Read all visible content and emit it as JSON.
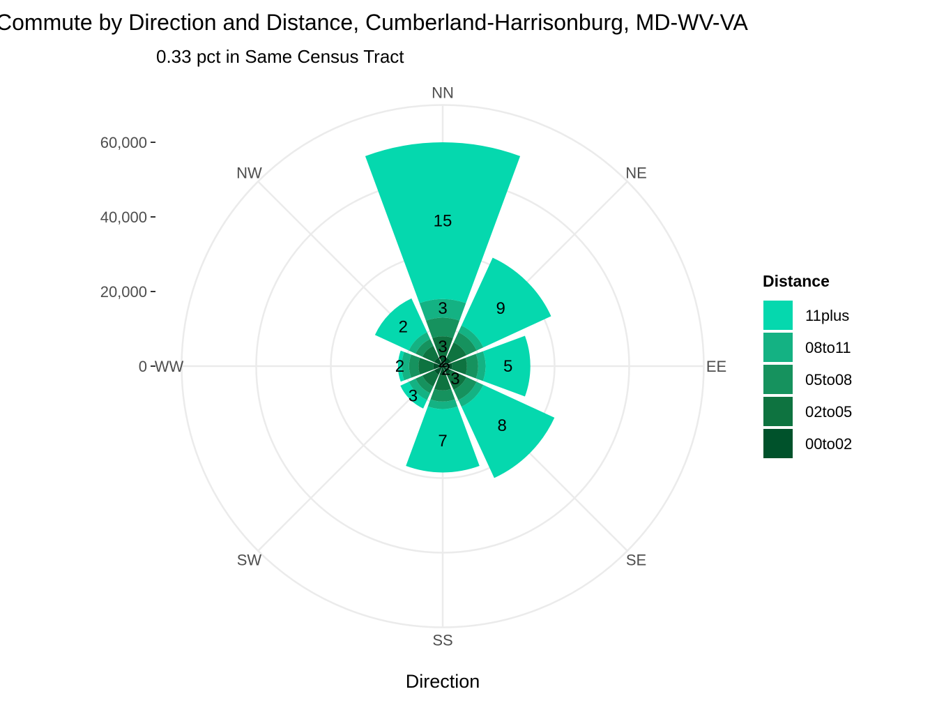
{
  "chart_data": {
    "type": "bar",
    "coord": "polar",
    "title": "Commute by Direction and Distance, Cumberland-Harrisonburg, MD-WV-VA",
    "subtitle": "0.33 pct in Same Census Tract",
    "xlabel": "Direction",
    "ylabel": "",
    "categories": [
      "NN",
      "NE",
      "EE",
      "SE",
      "SS",
      "SW",
      "WW",
      "NW"
    ],
    "ylim": [
      0,
      70000
    ],
    "y_ticks": [
      0,
      20000,
      40000,
      60000
    ],
    "y_tick_labels": [
      "0",
      "20,000",
      "40,000",
      "60,000"
    ],
    "legend": {
      "title": "Distance",
      "position": "right"
    },
    "series": [
      {
        "name": "00to02",
        "color": "#00522B",
        "values": [
          2500,
          2500,
          2500,
          2500,
          2500,
          2500,
          2500,
          2500
        ]
      },
      {
        "name": "02to05",
        "color": "#0E7340",
        "values": [
          5500,
          4500,
          4000,
          4500,
          4000,
          3500,
          4000,
          3500
        ]
      },
      {
        "name": "05to08",
        "color": "#16925E",
        "values": [
          5000,
          3000,
          3000,
          3000,
          3000,
          2000,
          2500,
          2000
        ]
      },
      {
        "name": "08to11",
        "color": "#14B283",
        "values": [
          5000,
          2000,
          2000,
          2000,
          2000,
          2000,
          2000,
          2000
        ]
      },
      {
        "name": "11plus",
        "color": "#05D8AE",
        "values": [
          42000,
          20000,
          12000,
          21000,
          17000,
          2500,
          1000,
          10000
        ]
      }
    ],
    "bar_labels": [
      {
        "category": "NN",
        "series": "11plus",
        "text": "15"
      },
      {
        "category": "NN",
        "series": "08to11",
        "text": "3"
      },
      {
        "category": "NN",
        "series": "02to05",
        "text": "3"
      },
      {
        "category": "NN",
        "series": "00to02",
        "text": "2"
      },
      {
        "category": "NE",
        "series": "11plus",
        "text": "9"
      },
      {
        "category": "EE",
        "series": "11plus",
        "text": "5"
      },
      {
        "category": "SE",
        "series": "11plus",
        "text": "8"
      },
      {
        "category": "SE",
        "series": "02to05",
        "text": "3"
      },
      {
        "category": "SE",
        "series": "00to02",
        "text": "2"
      },
      {
        "category": "SS",
        "series": "11plus",
        "text": "7"
      },
      {
        "category": "SW",
        "series": "11plus",
        "text": "3"
      },
      {
        "category": "WW",
        "series": "11plus",
        "text": "2"
      },
      {
        "category": "NW",
        "series": "11plus",
        "text": "2"
      }
    ]
  }
}
